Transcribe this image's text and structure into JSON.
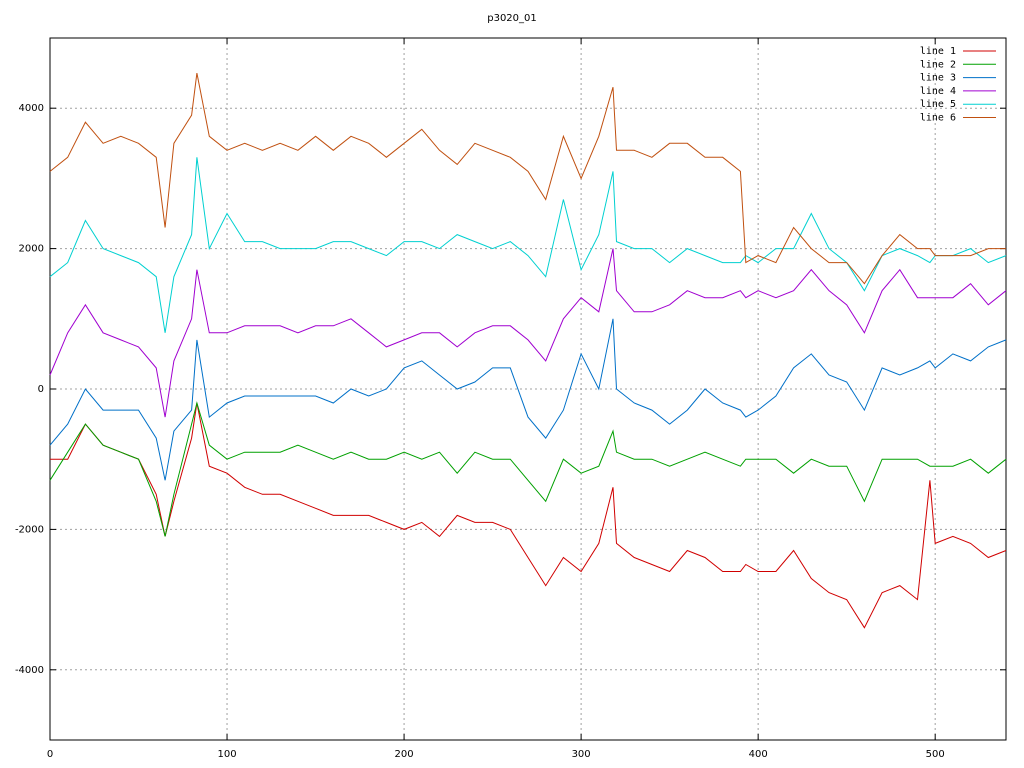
{
  "chart_data": {
    "type": "line",
    "title": "p3020_01",
    "x": [
      0,
      10,
      20,
      30,
      40,
      50,
      60,
      65,
      70,
      80,
      83,
      90,
      100,
      110,
      120,
      130,
      140,
      150,
      160,
      170,
      180,
      190,
      200,
      210,
      220,
      230,
      240,
      250,
      260,
      270,
      280,
      290,
      300,
      310,
      318,
      320,
      330,
      340,
      350,
      360,
      370,
      380,
      390,
      393,
      400,
      410,
      420,
      430,
      440,
      450,
      460,
      470,
      480,
      490,
      497,
      500,
      510,
      520,
      530,
      540
    ],
    "series": [
      {
        "name": "line 1",
        "color": "#d00000",
        "values": [
          -1000,
          -1000,
          -500,
          -800,
          -900,
          -1000,
          -1500,
          -2100,
          -1600,
          -700,
          -200,
          -1100,
          -1200,
          -1400,
          -1500,
          -1500,
          -1600,
          -1700,
          -1800,
          -1800,
          -1800,
          -1900,
          -2000,
          -1900,
          -2100,
          -1800,
          -1900,
          -1900,
          -2000,
          -2400,
          -2800,
          -2400,
          -2600,
          -2200,
          -1400,
          -2200,
          -2400,
          -2500,
          -2600,
          -2300,
          -2400,
          -2600,
          -2600,
          -2500,
          -2600,
          -2600,
          -2300,
          -2700,
          -2900,
          -3000,
          -3400,
          -2900,
          -2800,
          -3000,
          -1300,
          -2200,
          -2100,
          -2200,
          -2400,
          -2300
        ]
      },
      {
        "name": "line 2",
        "color": "#00a000",
        "values": [
          -1300,
          -900,
          -500,
          -800,
          -900,
          -1000,
          -1600,
          -2100,
          -1500,
          -500,
          -200,
          -800,
          -1000,
          -900,
          -900,
          -900,
          -800,
          -900,
          -1000,
          -900,
          -1000,
          -1000,
          -900,
          -1000,
          -900,
          -1200,
          -900,
          -1000,
          -1000,
          -1300,
          -1600,
          -1000,
          -1200,
          -1100,
          -600,
          -900,
          -1000,
          -1000,
          -1100,
          -1000,
          -900,
          -1000,
          -1100,
          -1000,
          -1000,
          -1000,
          -1200,
          -1000,
          -1100,
          -1100,
          -1600,
          -1000,
          -1000,
          -1000,
          -1100,
          -1100,
          -1100,
          -1000,
          -1200,
          -1000
        ]
      },
      {
        "name": "line 3",
        "color": "#0070c8",
        "values": [
          -800,
          -500,
          0,
          -300,
          -300,
          -300,
          -700,
          -1300,
          -600,
          -300,
          700,
          -400,
          -200,
          -100,
          -100,
          -100,
          -100,
          -100,
          -200,
          0,
          -100,
          0,
          300,
          400,
          200,
          0,
          100,
          300,
          300,
          -400,
          -700,
          -300,
          500,
          0,
          1000,
          0,
          -200,
          -300,
          -500,
          -300,
          0,
          -200,
          -300,
          -400,
          -300,
          -100,
          300,
          500,
          200,
          100,
          -300,
          300,
          200,
          300,
          400,
          300,
          500,
          400,
          600,
          700
        ]
      },
      {
        "name": "line 4",
        "color": "#a000d0",
        "values": [
          200,
          800,
          1200,
          800,
          700,
          600,
          300,
          -400,
          400,
          1000,
          1700,
          800,
          800,
          900,
          900,
          900,
          800,
          900,
          900,
          1000,
          800,
          600,
          700,
          800,
          800,
          600,
          800,
          900,
          900,
          700,
          400,
          1000,
          1300,
          1100,
          2000,
          1400,
          1100,
          1100,
          1200,
          1400,
          1300,
          1300,
          1400,
          1300,
          1400,
          1300,
          1400,
          1700,
          1400,
          1200,
          800,
          1400,
          1700,
          1300,
          1300,
          1300,
          1300,
          1500,
          1200,
          1400
        ]
      },
      {
        "name": "line 5",
        "color": "#00d0d0",
        "values": [
          1600,
          1800,
          2400,
          2000,
          1900,
          1800,
          1600,
          800,
          1600,
          2200,
          3300,
          2000,
          2500,
          2100,
          2100,
          2000,
          2000,
          2000,
          2100,
          2100,
          2000,
          1900,
          2100,
          2100,
          2000,
          2200,
          2100,
          2000,
          2100,
          1900,
          1600,
          2700,
          1700,
          2200,
          3100,
          2100,
          2000,
          2000,
          1800,
          2000,
          1900,
          1800,
          1800,
          1900,
          1800,
          2000,
          2000,
          2500,
          2000,
          1800,
          1400,
          1900,
          2000,
          1900,
          1800,
          1900,
          1900,
          2000,
          1800,
          1900
        ]
      },
      {
        "name": "line 6",
        "color": "#c05010",
        "values": [
          3100,
          3300,
          3800,
          3500,
          3600,
          3500,
          3300,
          2300,
          3500,
          3900,
          4500,
          3600,
          3400,
          3500,
          3400,
          3500,
          3400,
          3600,
          3400,
          3600,
          3500,
          3300,
          3500,
          3700,
          3400,
          3200,
          3500,
          3400,
          3300,
          3100,
          2700,
          3600,
          3000,
          3600,
          4300,
          3400,
          3400,
          3300,
          3500,
          3500,
          3300,
          3300,
          3100,
          1800,
          1900,
          1800,
          2300,
          2000,
          1800,
          1800,
          1500,
          1900,
          2200,
          2000,
          2000,
          1900,
          1900,
          1900,
          2000,
          2000
        ]
      }
    ],
    "xlim": [
      0,
      540
    ],
    "ylim": [
      -5000,
      5000
    ],
    "xticks": [
      0,
      100,
      200,
      300,
      400,
      500
    ],
    "yticks": [
      -4000,
      -2000,
      0,
      2000,
      4000
    ],
    "grid": true,
    "legend": "upper right"
  }
}
